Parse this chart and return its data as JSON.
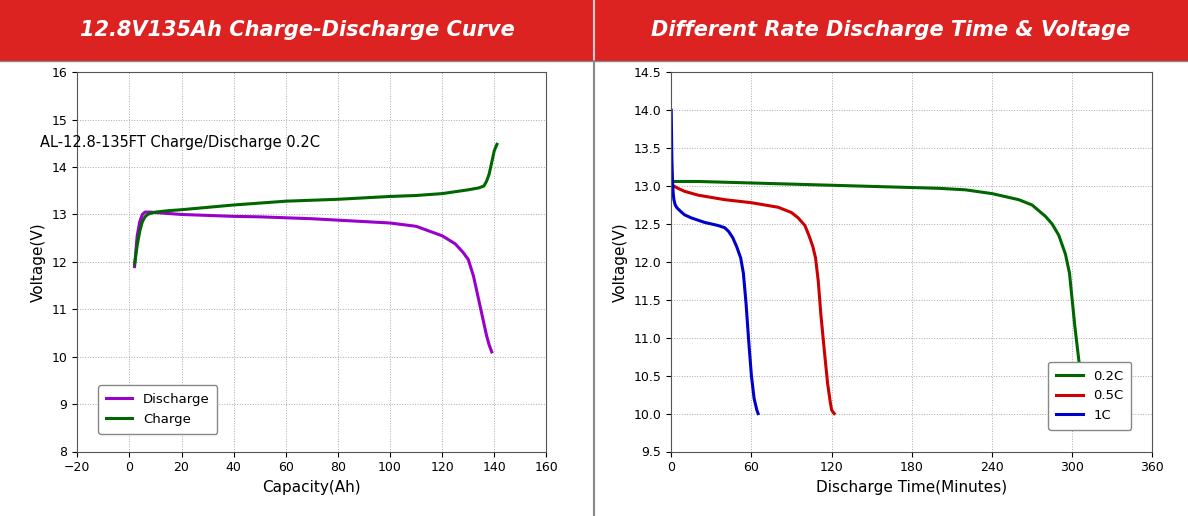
{
  "left_title": "12.8V135Ah Charge-Discharge Curve",
  "right_title": "Different Rate Discharge Time & Voltage",
  "annotation": "AL-12.8-135FT Charge/Discharge 0.2C",
  "header_color": "#dd2222",
  "header_text_color": "#ffffff",
  "bg_color": "#ffffff",
  "grid_color": "#aaaaaa",
  "divider_color": "#888888",
  "left": {
    "xlim": [
      -20,
      160
    ],
    "ylim": [
      8,
      16
    ],
    "xticks": [
      -20,
      0,
      20,
      40,
      60,
      80,
      100,
      120,
      140,
      160
    ],
    "yticks": [
      8,
      9,
      10,
      11,
      12,
      13,
      14,
      15,
      16
    ],
    "xlabel": "Capacity(Ah)",
    "ylabel": "Voltage(V)",
    "discharge_color": "#9900cc",
    "charge_color": "#006600"
  },
  "right": {
    "xlim": [
      0,
      360
    ],
    "ylim": [
      9.5,
      14.5
    ],
    "xticks": [
      0,
      60,
      120,
      180,
      240,
      300,
      360
    ],
    "yticks": [
      9.5,
      10.0,
      10.5,
      11.0,
      11.5,
      12.0,
      12.5,
      13.0,
      13.5,
      14.0,
      14.5
    ],
    "xlabel": "Discharge Time(Minutes)",
    "ylabel": "Voltage(V)",
    "color_02C": "#006600",
    "color_05C": "#cc0000",
    "color_1C": "#0000cc"
  }
}
